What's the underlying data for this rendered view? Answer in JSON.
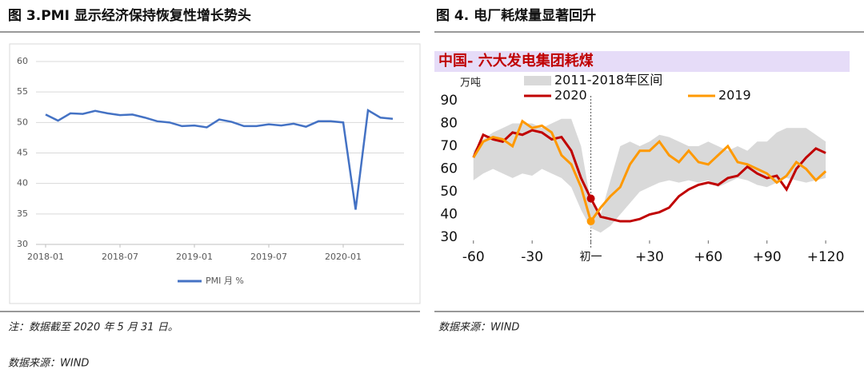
{
  "chart_data": [
    {
      "type": "line",
      "title": "图 3.PMI 显示经济保持恢复性增长势头",
      "categories": [
        "2018-01",
        null,
        null,
        null,
        null,
        null,
        "2018-07",
        null,
        null,
        null,
        null,
        null,
        "2019-01",
        null,
        null,
        null,
        null,
        null,
        "2019-07",
        null,
        null,
        null,
        null,
        null,
        "2020-01",
        null,
        null,
        null,
        null
      ],
      "series": [
        {
          "name": "PMI 月 %",
          "color": "#4472c4",
          "values": [
            51.3,
            50.3,
            51.5,
            51.4,
            51.9,
            51.5,
            51.2,
            51.3,
            50.8,
            50.2,
            50.0,
            49.4,
            49.5,
            49.2,
            50.5,
            50.1,
            49.4,
            49.4,
            49.7,
            49.5,
            49.8,
            49.3,
            50.2,
            50.2,
            50.0,
            35.7,
            52.0,
            50.8,
            50.6
          ]
        }
      ],
      "ylim": [
        30,
        60
      ],
      "yticks": [
        30,
        35,
        40,
        45,
        50,
        55,
        60
      ],
      "grid": true,
      "legend": "bottom"
    },
    {
      "type": "line",
      "title": "图 4.  电厂耗煤量显著回升",
      "subtitle": "中国- 六大发电集团耗煤",
      "y_label": "万吨",
      "x": [
        -60,
        -55,
        -50,
        -45,
        -40,
        -35,
        -30,
        -25,
        -20,
        -15,
        -10,
        -5,
        0,
        5,
        10,
        15,
        20,
        25,
        30,
        35,
        40,
        45,
        50,
        55,
        60,
        65,
        70,
        75,
        80,
        85,
        90,
        95,
        100,
        105,
        110,
        115,
        120
      ],
      "series": [
        {
          "name": "2011-2018年区间",
          "kind": "range",
          "color": "#d9d9d9",
          "low": [
            55,
            58,
            60,
            58,
            56,
            58,
            57,
            60,
            58,
            56,
            52,
            42,
            34,
            32,
            35,
            40,
            45,
            50,
            52,
            54,
            55,
            54,
            55,
            54,
            55,
            52,
            54,
            56,
            55,
            53,
            52,
            54,
            56,
            55,
            54,
            55,
            56
          ],
          "high": [
            68,
            73,
            76,
            78,
            80,
            80,
            80,
            78,
            80,
            82,
            82,
            70,
            45,
            40,
            55,
            70,
            72,
            70,
            72,
            75,
            74,
            72,
            70,
            70,
            72,
            70,
            68,
            70,
            68,
            72,
            72,
            76,
            78,
            78,
            78,
            75,
            72
          ]
        },
        {
          "name": "2020",
          "color": "#c00000",
          "values": [
            65,
            75,
            73,
            72,
            76,
            75,
            77,
            76,
            73,
            74,
            68,
            56,
            47,
            39,
            38,
            37,
            37,
            38,
            40,
            41,
            43,
            48,
            51,
            53,
            54,
            53,
            56,
            57,
            61,
            58,
            56,
            57,
            51,
            60,
            65,
            69,
            67
          ]
        },
        {
          "name": "2019",
          "color": "#ff9900",
          "values": [
            65,
            72,
            74,
            73,
            70,
            81,
            78,
            79,
            76,
            66,
            62,
            52,
            37,
            43,
            48,
            52,
            62,
            68,
            68,
            72,
            66,
            63,
            68,
            63,
            62,
            66,
            70,
            63,
            62,
            60,
            58,
            54,
            57,
            63,
            60,
            55,
            59
          ]
        }
      ],
      "xlim": [
        -64,
        122
      ],
      "xticks": [
        -60,
        -30,
        {
          "value": 0,
          "label": "初一"
        },
        {
          "value": 30,
          "label": "+30"
        },
        {
          "value": 60,
          "label": "+60"
        },
        {
          "value": 90,
          "label": "+90"
        },
        {
          "value": 120,
          "label": "+120"
        }
      ],
      "ylim": [
        30,
        90
      ],
      "yticks": [
        30,
        40,
        50,
        60,
        70,
        80,
        90
      ],
      "vline_x": 0,
      "legend": "top"
    }
  ],
  "notes": [
    "注：数据截至 2020 年 5 月 31 日。",
    "数据来源：WIND"
  ],
  "source_right": "数据来源：WIND"
}
